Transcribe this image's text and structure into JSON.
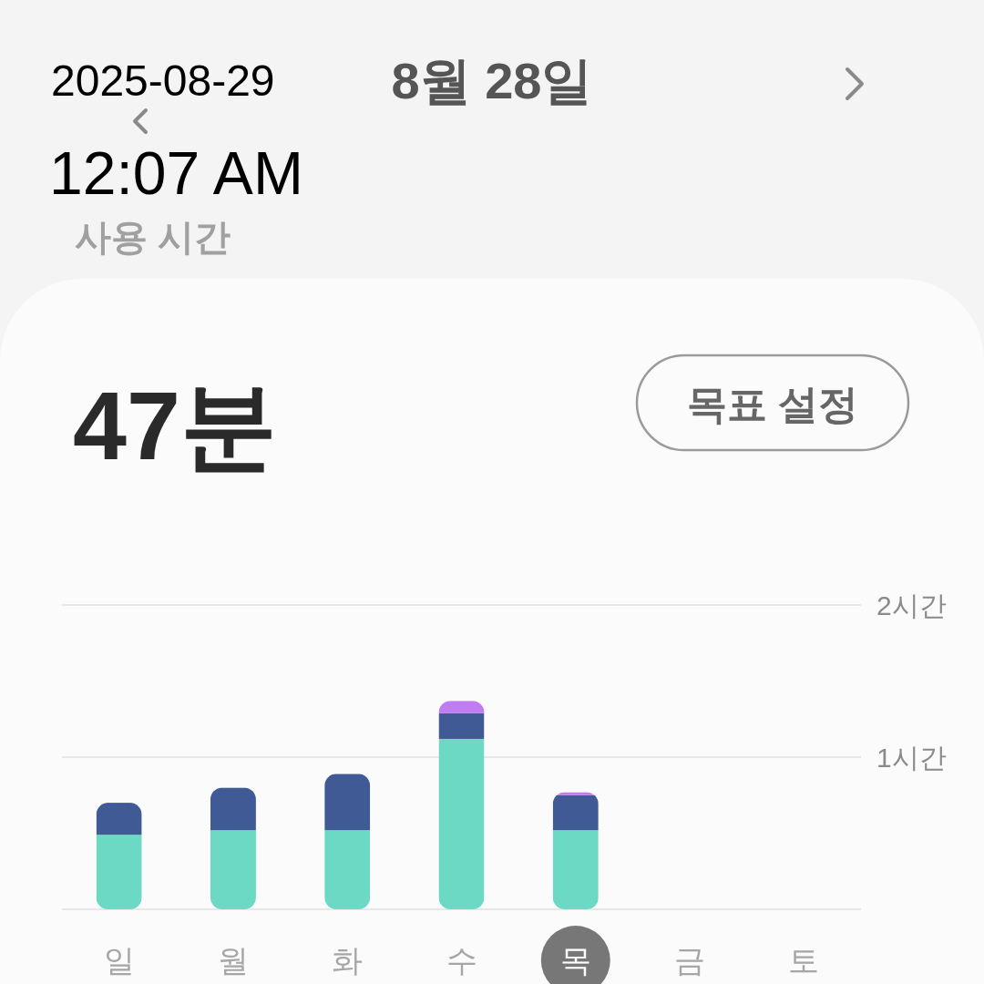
{
  "chart_data": {
    "type": "bar",
    "title": "8월 28일",
    "subtitle": "사용 시간",
    "annotations": [
      "2025-08-29",
      "12:07 AM",
      "47분",
      "목표 설정"
    ],
    "categories": [
      "일",
      "월",
      "화",
      "수",
      "목",
      "금",
      "토"
    ],
    "series": [
      {
        "color": "#6bd9c3",
        "values": [
          0.49,
          0.52,
          0.52,
          1.12,
          0.52,
          null,
          null
        ]
      },
      {
        "color": "#405a96",
        "values": [
          0.21,
          0.28,
          0.37,
          0.17,
          0.23,
          null,
          null
        ]
      },
      {
        "color": "#c07cf0",
        "values": [
          null,
          null,
          null,
          0.08,
          0.02,
          null,
          null
        ]
      }
    ],
    "stacked": true,
    "ylim": [
      0,
      2
    ],
    "yticks": [
      {
        "value": 0,
        "label": null
      },
      {
        "value": 1,
        "label": "1시간"
      },
      {
        "value": 2,
        "label": "2시간"
      }
    ],
    "grid": "y"
  }
}
